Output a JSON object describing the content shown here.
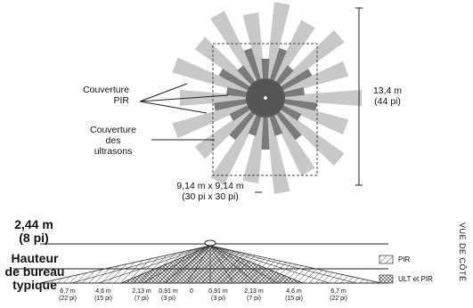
{
  "top_view": {
    "pir_label": [
      "Couverture",
      "PIR"
    ],
    "ultrasonic_label": [
      "Couverture",
      "des",
      "ultrasons"
    ],
    "height_label": [
      "13,4 m",
      "(44 pi)"
    ],
    "area_label": [
      "9,14 m x 9,14 m",
      "(30 pi x 30 pi)"
    ]
  },
  "side_view": {
    "ceiling_label": [
      "2,44 m",
      "(8 pi)"
    ],
    "desk_label": [
      "Hauteur",
      "de bureau",
      "typique"
    ],
    "ticks": [
      [
        "6,7 m",
        "(22 pi)"
      ],
      [
        "4,6 m",
        "(15 pi)"
      ],
      [
        "2,13 m",
        "(7 pi)"
      ],
      [
        "0,91 m",
        "(3 pi)"
      ],
      [
        "0",
        ""
      ],
      [
        "0,91 m",
        "(3 pi)"
      ],
      [
        "2,13 m",
        "(7 pi)"
      ],
      [
        "4,6 m",
        "(15 pi)"
      ],
      [
        "6,7 m",
        "(22 pi)"
      ]
    ],
    "legend_pir": "PIR",
    "legend_ult": "ULT et PIR",
    "view_title": "VUE DE CÔTÉ"
  },
  "colors": {
    "pir_ray": "#c8c8c8",
    "ult_ray": "#7a7a7a",
    "line": "#222222"
  }
}
